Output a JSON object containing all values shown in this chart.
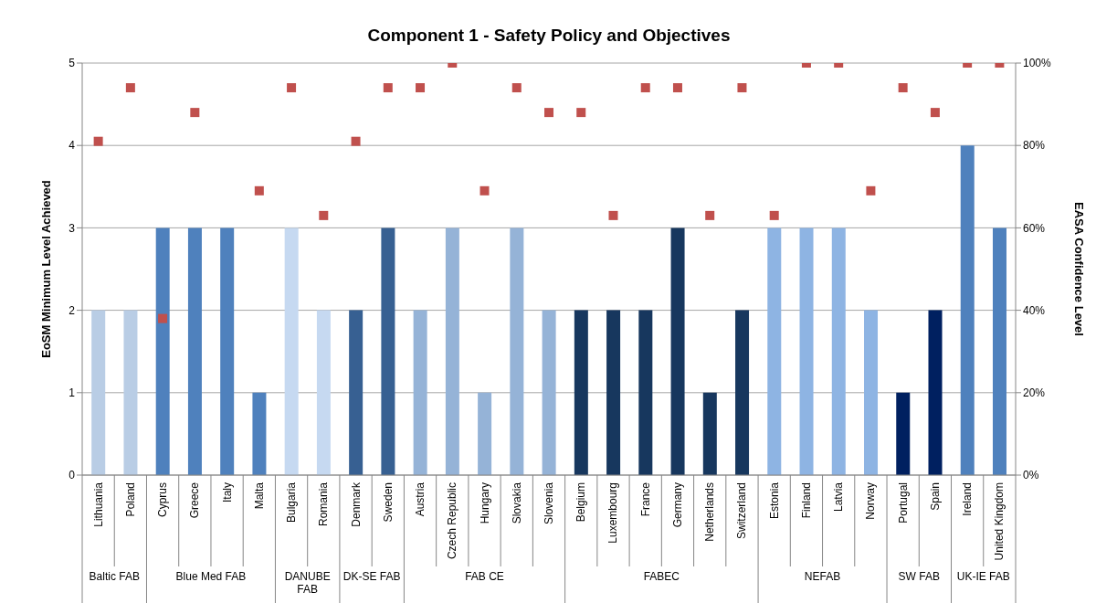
{
  "chart_data": {
    "type": "bar",
    "title": "Component 1 - Safety Policy and Objectives",
    "ylabel": "EoSM Minimum Level Achieved",
    "y2label": "EASA Confidence Level",
    "categories": [
      "Lithuania",
      "Poland",
      "Cyprus",
      "Greece",
      "Italy",
      "Malta",
      "Bulgaria",
      "Romania",
      "Denmark",
      "Sweden",
      "Austria",
      "Czech Republic",
      "Hungary",
      "Slovakia",
      "Slovenia",
      "Belgium",
      "Luxembourg",
      "France",
      "Germany",
      "Netherlands",
      "Switzerland",
      "Estonia",
      "Finland",
      "Latvia",
      "Norway",
      "Portugal",
      "Spain",
      "Ireland",
      "United Kingdom"
    ],
    "series": [
      {
        "values": [
          2,
          2,
          3,
          3,
          3,
          1,
          3,
          2,
          2,
          3,
          2,
          3,
          1,
          3,
          2,
          2,
          2,
          2,
          3,
          1,
          2,
          3,
          3,
          3,
          2,
          1,
          2,
          4,
          3
        ],
        "colors": [
          "#b9cde5",
          "#b9cde5",
          "#4f81bd",
          "#4f81bd",
          "#4f81bd",
          "#4f81bd",
          "#c6d9f1",
          "#c6d9f1",
          "#376092",
          "#376092",
          "#95b3d7",
          "#95b3d7",
          "#95b3d7",
          "#95b3d7",
          "#95b3d7",
          "#17375e",
          "#17375e",
          "#17375e",
          "#17375e",
          "#17375e",
          "#17375e",
          "#8eb4e3",
          "#8eb4e3",
          "#8eb4e3",
          "#8eb4e3",
          "#002060",
          "#002060",
          "#4f81bd",
          "#4f81bd"
        ]
      },
      {
        "type": "scatter",
        "axis": "y2",
        "color": "#c0504d",
        "marker": "square",
        "values": [
          81,
          94,
          38,
          88,
          null,
          69,
          94,
          63,
          81,
          94,
          94,
          100,
          69,
          94,
          88,
          88,
          63,
          94,
          94,
          63,
          94,
          63,
          100,
          100,
          69,
          94,
          88,
          100,
          100
        ]
      }
    ],
    "ylim": [
      0,
      5
    ],
    "yticks": [
      0,
      1,
      2,
      3,
      4,
      5
    ],
    "y2lim": [
      0,
      100
    ],
    "y2ticks": [
      {
        "value": 0,
        "label": "0%"
      },
      {
        "value": 20,
        "label": "20%"
      },
      {
        "value": 40,
        "label": "40%"
      },
      {
        "value": 60,
        "label": "60%"
      },
      {
        "value": 80,
        "label": "80%"
      },
      {
        "value": 100,
        "label": "100%"
      }
    ],
    "grid": "y",
    "annotations": [
      "Baltic FAB",
      "Blue Med FAB",
      "DANUBE FAB",
      "DK-SE FAB",
      "FAB CE",
      "FABEC",
      "NEFAB",
      "SW FAB",
      "UK-IE FAB"
    ]
  }
}
